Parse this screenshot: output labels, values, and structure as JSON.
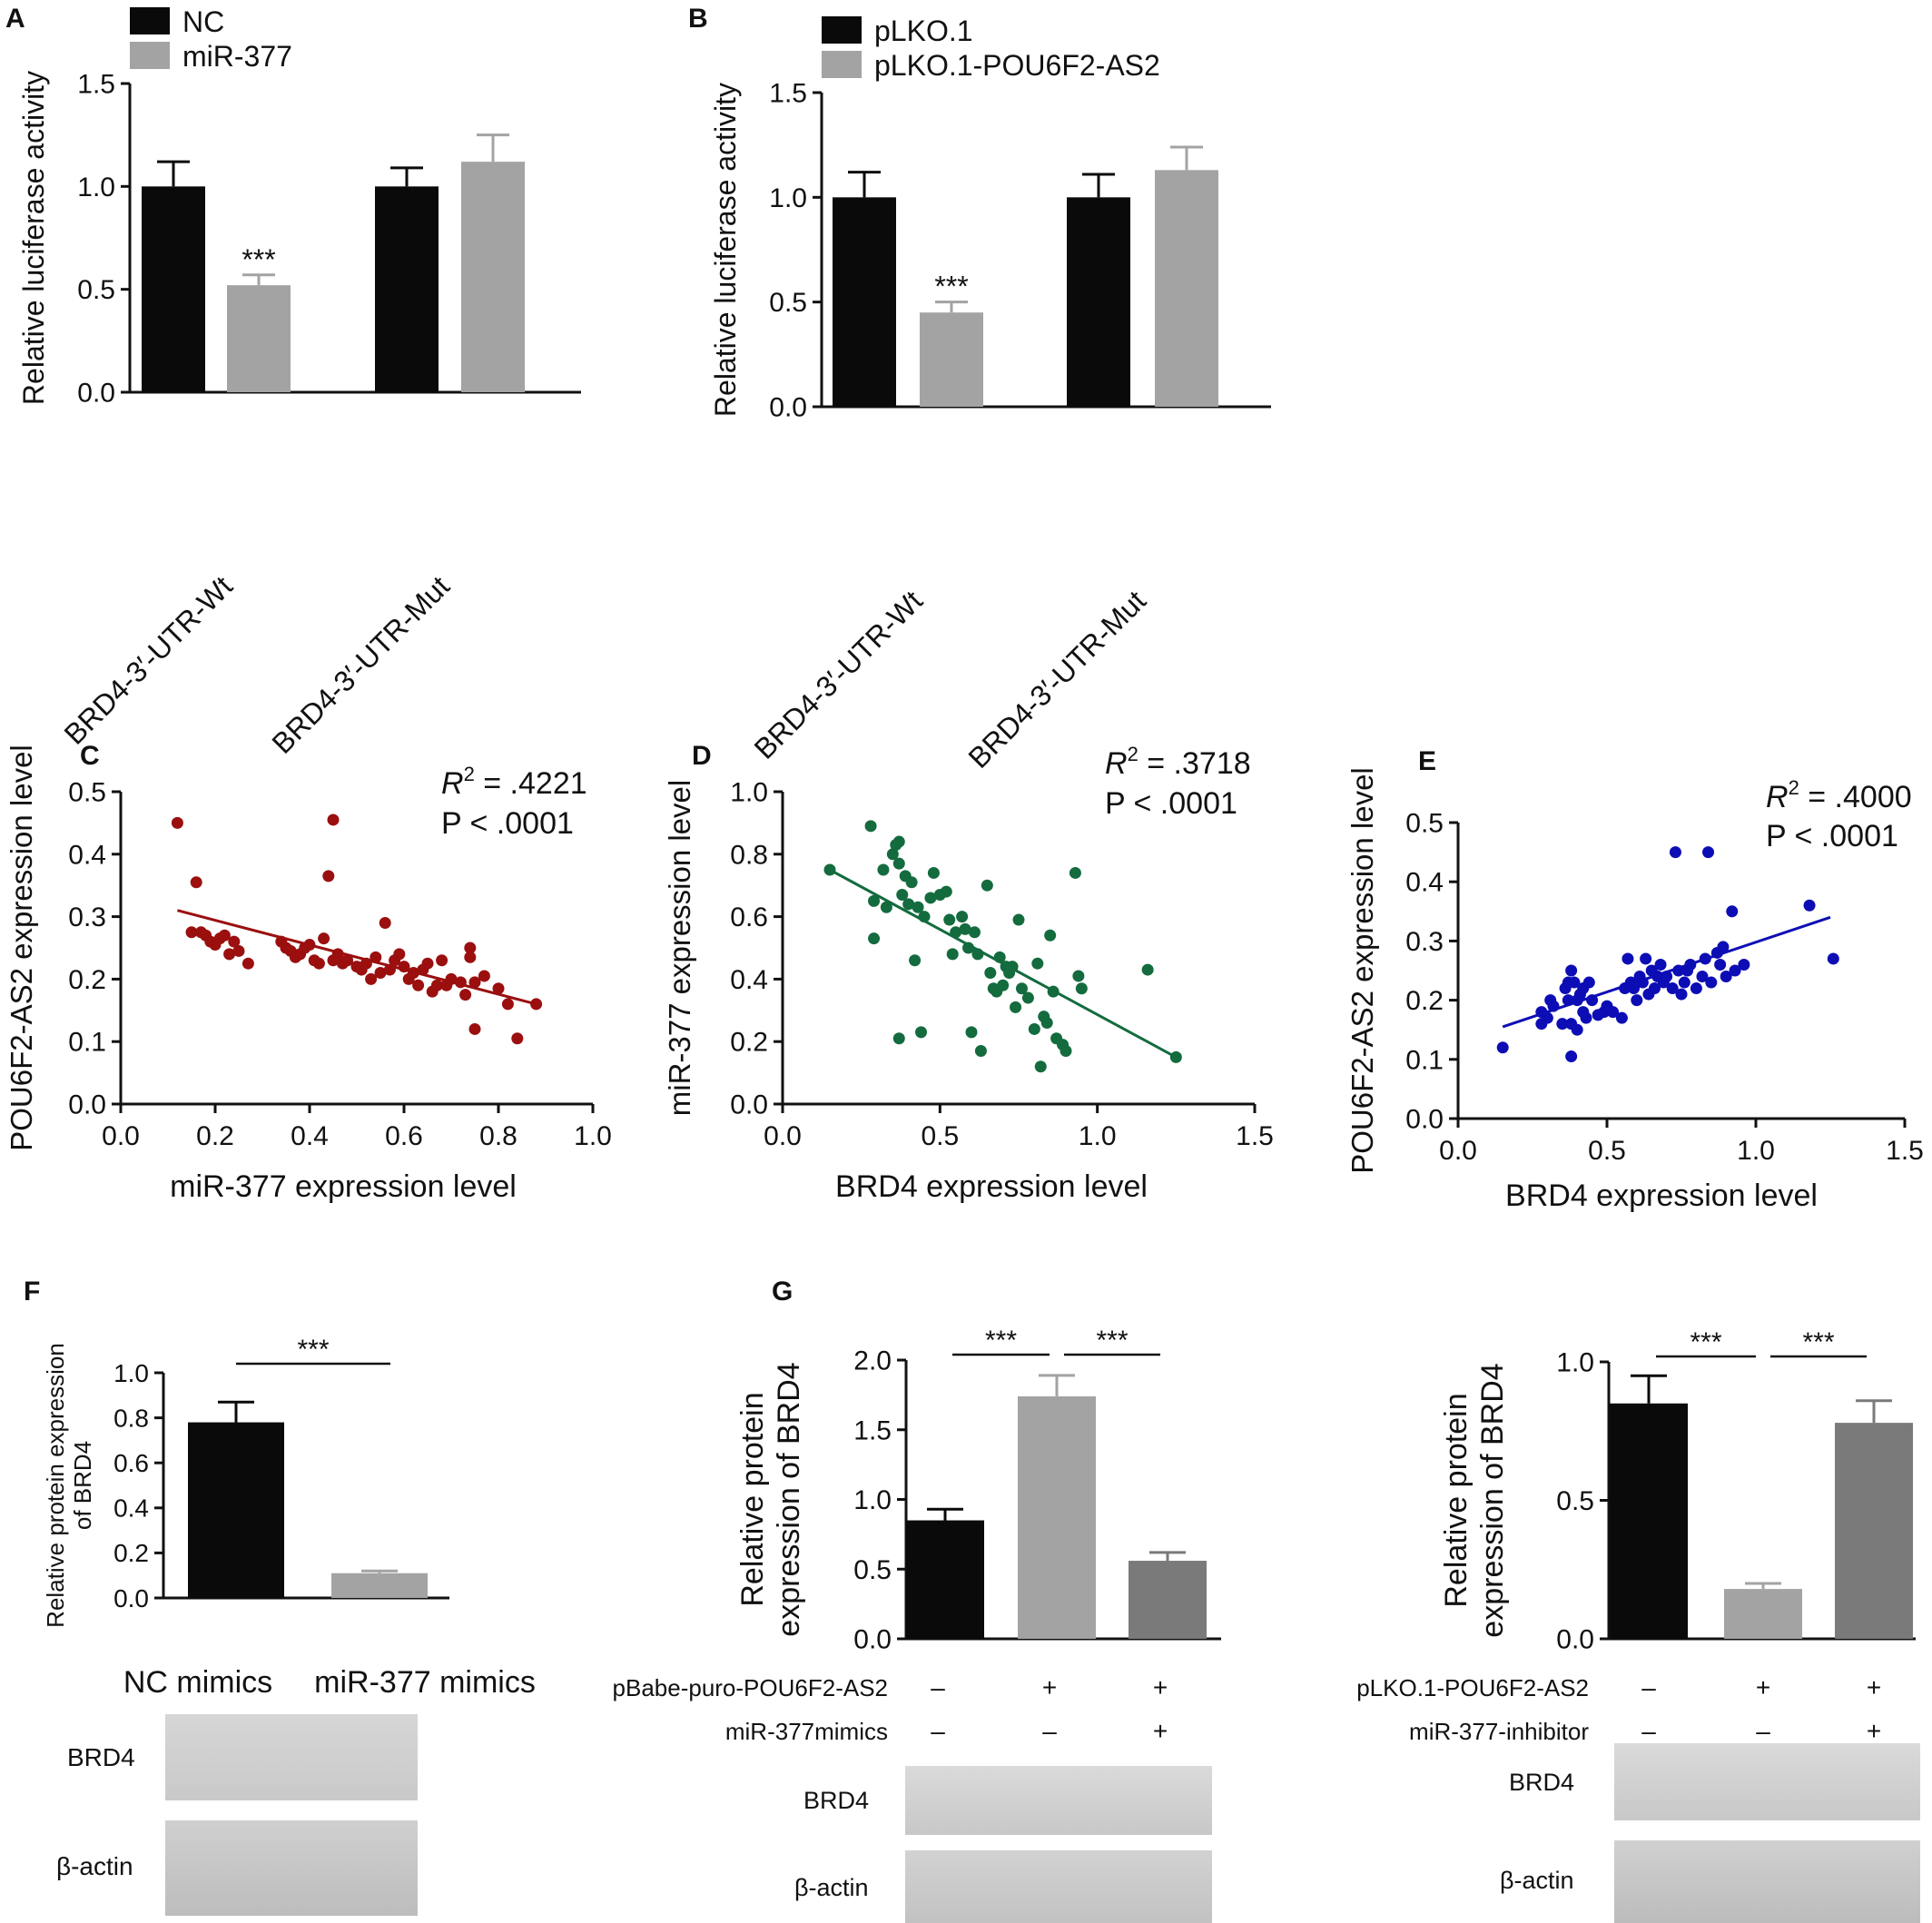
{
  "panels": [
    "A",
    "B",
    "C",
    "D",
    "E",
    "F",
    "G"
  ],
  "colors": {
    "black": "#0a0a0a",
    "gray": "#a3a3a3",
    "midgray": "#7a7a7a",
    "red": "#9b0f0f",
    "green": "#136b3e",
    "blue": "#0d0db5"
  },
  "chart_data": [
    {
      "panel": "A",
      "type": "bar",
      "ylabel": "Relative luciferase activity",
      "ylim": [
        0,
        1.5
      ],
      "yticks": [
        "0.0",
        "0.5",
        "1.0",
        "1.5"
      ],
      "categories": [
        "BRD4-3′-UTR-Wt",
        "BRD4-3′-UTR-Mut"
      ],
      "series": [
        {
          "name": "NC",
          "color": "#0a0a0a",
          "values": [
            1.0,
            1.0
          ],
          "errors": [
            0.12,
            0.09
          ]
        },
        {
          "name": "miR-377",
          "color": "#a3a3a3",
          "values": [
            0.52,
            1.12
          ],
          "errors": [
            0.05,
            0.13
          ]
        }
      ],
      "annotations": [
        {
          "text": "***",
          "category": 0,
          "series": 1
        }
      ]
    },
    {
      "panel": "B",
      "type": "bar",
      "ylabel": "Relative luciferase activity",
      "ylim": [
        0,
        1.5
      ],
      "yticks": [
        "0.0",
        "0.5",
        "1.0",
        "1.5"
      ],
      "categories": [
        "BRD4-3′-UTR-Wt",
        "BRD4-3′-UTR-Mut"
      ],
      "series": [
        {
          "name": "pLKO.1",
          "color": "#0a0a0a",
          "values": [
            1.0,
            1.0
          ],
          "errors": [
            0.12,
            0.11
          ]
        },
        {
          "name": "pLKO.1-POU6F2-AS2",
          "color": "#a3a3a3",
          "values": [
            0.45,
            1.13
          ],
          "errors": [
            0.05,
            0.11
          ]
        }
      ],
      "annotations": [
        {
          "text": "***",
          "category": 0,
          "series": 1
        }
      ]
    },
    {
      "panel": "C",
      "type": "scatter",
      "xlabel": "miR-377 expression level",
      "ylabel": "POU6F2-AS2 expression level",
      "xlim": [
        0,
        1.0
      ],
      "ylim": [
        0,
        0.5
      ],
      "xticks": [
        "0.0",
        "0.2",
        "0.4",
        "0.6",
        "0.8",
        "1.0"
      ],
      "yticks": [
        "0.0",
        "0.1",
        "0.2",
        "0.3",
        "0.4",
        "0.5"
      ],
      "color": "#9b0f0f",
      "r2_label": "R",
      "r2_sup": "2",
      "r2_value": " = .4221",
      "p_text": "P < .0001",
      "fit": {
        "x": [
          0.12,
          0.88
        ],
        "y": [
          0.31,
          0.16
        ]
      },
      "points": [
        [
          0.12,
          0.45
        ],
        [
          0.16,
          0.355
        ],
        [
          0.15,
          0.275
        ],
        [
          0.17,
          0.275
        ],
        [
          0.18,
          0.27
        ],
        [
          0.19,
          0.26
        ],
        [
          0.2,
          0.255
        ],
        [
          0.21,
          0.265
        ],
        [
          0.22,
          0.27
        ],
        [
          0.23,
          0.24
        ],
        [
          0.24,
          0.26
        ],
        [
          0.25,
          0.245
        ],
        [
          0.27,
          0.225
        ],
        [
          0.34,
          0.26
        ],
        [
          0.35,
          0.25
        ],
        [
          0.36,
          0.245
        ],
        [
          0.37,
          0.235
        ],
        [
          0.38,
          0.24
        ],
        [
          0.39,
          0.25
        ],
        [
          0.4,
          0.255
        ],
        [
          0.41,
          0.23
        ],
        [
          0.42,
          0.225
        ],
        [
          0.43,
          0.265
        ],
        [
          0.44,
          0.365
        ],
        [
          0.45,
          0.455
        ],
        [
          0.45,
          0.23
        ],
        [
          0.46,
          0.24
        ],
        [
          0.47,
          0.225
        ],
        [
          0.48,
          0.23
        ],
        [
          0.5,
          0.22
        ],
        [
          0.51,
          0.215
        ],
        [
          0.52,
          0.225
        ],
        [
          0.53,
          0.2
        ],
        [
          0.54,
          0.235
        ],
        [
          0.55,
          0.21
        ],
        [
          0.56,
          0.29
        ],
        [
          0.57,
          0.215
        ],
        [
          0.58,
          0.23
        ],
        [
          0.59,
          0.24
        ],
        [
          0.6,
          0.22
        ],
        [
          0.61,
          0.2
        ],
        [
          0.62,
          0.21
        ],
        [
          0.63,
          0.19
        ],
        [
          0.64,
          0.215
        ],
        [
          0.65,
          0.225
        ],
        [
          0.66,
          0.18
        ],
        [
          0.67,
          0.19
        ],
        [
          0.68,
          0.23
        ],
        [
          0.69,
          0.19
        ],
        [
          0.7,
          0.2
        ],
        [
          0.72,
          0.195
        ],
        [
          0.73,
          0.175
        ],
        [
          0.74,
          0.25
        ],
        [
          0.74,
          0.235
        ],
        [
          0.75,
          0.195
        ],
        [
          0.75,
          0.12
        ],
        [
          0.77,
          0.205
        ],
        [
          0.8,
          0.185
        ],
        [
          0.82,
          0.16
        ],
        [
          0.84,
          0.105
        ],
        [
          0.88,
          0.16
        ]
      ]
    },
    {
      "panel": "D",
      "type": "scatter",
      "xlabel": "BRD4 expression level",
      "ylabel": "miR-377 expression level",
      "xlim": [
        0,
        1.5
      ],
      "ylim": [
        0,
        1.0
      ],
      "xticks": [
        "0.0",
        "0.5",
        "1.0",
        "1.5"
      ],
      "yticks": [
        "0.0",
        "0.2",
        "0.4",
        "0.6",
        "0.8",
        "1.0"
      ],
      "color": "#136b3e",
      "r2_label": "R",
      "r2_sup": "2",
      "r2_value": " = .3718",
      "p_text": "P < .0001",
      "fit": {
        "x": [
          0.15,
          1.25
        ],
        "y": [
          0.75,
          0.15
        ]
      },
      "points": [
        [
          0.15,
          0.75
        ],
        [
          0.28,
          0.89
        ],
        [
          0.29,
          0.65
        ],
        [
          0.29,
          0.53
        ],
        [
          0.32,
          0.75
        ],
        [
          0.33,
          0.63
        ],
        [
          0.35,
          0.8
        ],
        [
          0.36,
          0.83
        ],
        [
          0.37,
          0.84
        ],
        [
          0.37,
          0.77
        ],
        [
          0.37,
          0.21
        ],
        [
          0.38,
          0.67
        ],
        [
          0.39,
          0.73
        ],
        [
          0.4,
          0.64
        ],
        [
          0.41,
          0.71
        ],
        [
          0.42,
          0.46
        ],
        [
          0.43,
          0.63
        ],
        [
          0.44,
          0.23
        ],
        [
          0.45,
          0.6
        ],
        [
          0.47,
          0.66
        ],
        [
          0.48,
          0.74
        ],
        [
          0.5,
          0.67
        ],
        [
          0.52,
          0.68
        ],
        [
          0.53,
          0.59
        ],
        [
          0.54,
          0.48
        ],
        [
          0.55,
          0.55
        ],
        [
          0.57,
          0.6
        ],
        [
          0.58,
          0.56
        ],
        [
          0.59,
          0.5
        ],
        [
          0.6,
          0.23
        ],
        [
          0.61,
          0.55
        ],
        [
          0.62,
          0.48
        ],
        [
          0.63,
          0.17
        ],
        [
          0.65,
          0.7
        ],
        [
          0.66,
          0.42
        ],
        [
          0.67,
          0.37
        ],
        [
          0.68,
          0.36
        ],
        [
          0.69,
          0.47
        ],
        [
          0.7,
          0.38
        ],
        [
          0.71,
          0.44
        ],
        [
          0.72,
          0.42
        ],
        [
          0.73,
          0.44
        ],
        [
          0.74,
          0.31
        ],
        [
          0.75,
          0.59
        ],
        [
          0.76,
          0.37
        ],
        [
          0.78,
          0.34
        ],
        [
          0.8,
          0.24
        ],
        [
          0.81,
          0.45
        ],
        [
          0.82,
          0.12
        ],
        [
          0.83,
          0.28
        ],
        [
          0.84,
          0.26
        ],
        [
          0.85,
          0.54
        ],
        [
          0.86,
          0.36
        ],
        [
          0.87,
          0.21
        ],
        [
          0.89,
          0.19
        ],
        [
          0.9,
          0.17
        ],
        [
          0.93,
          0.74
        ],
        [
          0.94,
          0.41
        ],
        [
          0.95,
          0.37
        ],
        [
          1.16,
          0.43
        ],
        [
          1.25,
          0.15
        ]
      ]
    },
    {
      "panel": "E",
      "type": "scatter",
      "xlabel": "BRD4 expression level",
      "ylabel": "POU6F2-AS2 expression level",
      "xlim": [
        0,
        1.5
      ],
      "ylim": [
        0,
        0.5
      ],
      "xticks": [
        "0.0",
        "0.5",
        "1.0",
        "1.5"
      ],
      "yticks": [
        "0.0",
        "0.1",
        "0.2",
        "0.3",
        "0.4",
        "0.5"
      ],
      "color": "#0d0db5",
      "r2_label": "R",
      "r2_sup": "2",
      "r2_value": " = .4000",
      "p_text": "P < .0001",
      "fit": {
        "x": [
          0.15,
          1.25
        ],
        "y": [
          0.155,
          0.34
        ]
      },
      "points": [
        [
          0.15,
          0.12
        ],
        [
          0.28,
          0.18
        ],
        [
          0.28,
          0.16
        ],
        [
          0.3,
          0.17
        ],
        [
          0.31,
          0.2
        ],
        [
          0.32,
          0.19
        ],
        [
          0.35,
          0.16
        ],
        [
          0.36,
          0.22
        ],
        [
          0.37,
          0.23
        ],
        [
          0.37,
          0.2
        ],
        [
          0.38,
          0.25
        ],
        [
          0.38,
          0.105
        ],
        [
          0.38,
          0.16
        ],
        [
          0.39,
          0.23
        ],
        [
          0.4,
          0.2
        ],
        [
          0.4,
          0.15
        ],
        [
          0.41,
          0.21
        ],
        [
          0.42,
          0.18
        ],
        [
          0.42,
          0.22
        ],
        [
          0.43,
          0.17
        ],
        [
          0.44,
          0.23
        ],
        [
          0.45,
          0.2
        ],
        [
          0.47,
          0.175
        ],
        [
          0.49,
          0.18
        ],
        [
          0.5,
          0.19
        ],
        [
          0.52,
          0.18
        ],
        [
          0.55,
          0.17
        ],
        [
          0.56,
          0.22
        ],
        [
          0.57,
          0.27
        ],
        [
          0.58,
          0.23
        ],
        [
          0.59,
          0.22
        ],
        [
          0.6,
          0.2
        ],
        [
          0.61,
          0.24
        ],
        [
          0.62,
          0.23
        ],
        [
          0.63,
          0.27
        ],
        [
          0.64,
          0.21
        ],
        [
          0.65,
          0.25
        ],
        [
          0.66,
          0.22
        ],
        [
          0.67,
          0.24
        ],
        [
          0.68,
          0.26
        ],
        [
          0.69,
          0.23
        ],
        [
          0.7,
          0.24
        ],
        [
          0.72,
          0.22
        ],
        [
          0.73,
          0.45
        ],
        [
          0.74,
          0.25
        ],
        [
          0.75,
          0.21
        ],
        [
          0.76,
          0.23
        ],
        [
          0.77,
          0.25
        ],
        [
          0.78,
          0.26
        ],
        [
          0.8,
          0.22
        ],
        [
          0.82,
          0.24
        ],
        [
          0.83,
          0.27
        ],
        [
          0.84,
          0.45
        ],
        [
          0.85,
          0.23
        ],
        [
          0.87,
          0.28
        ],
        [
          0.88,
          0.26
        ],
        [
          0.89,
          0.29
        ],
        [
          0.9,
          0.24
        ],
        [
          0.92,
          0.35
        ],
        [
          0.93,
          0.25
        ],
        [
          0.96,
          0.26
        ],
        [
          1.18,
          0.36
        ],
        [
          1.26,
          0.27
        ]
      ]
    },
    {
      "panel": "F",
      "type": "bar",
      "ylabel": "Relative protein expression of BRD4",
      "ylim": [
        0,
        1.0
      ],
      "yticks": [
        "0.0",
        "0.2",
        "0.4",
        "0.6",
        "0.8",
        "1.0"
      ],
      "categories": [
        "NC mimics",
        "miR-377 mimics"
      ],
      "values": [
        0.78,
        0.11
      ],
      "errors": [
        0.09,
        0.01
      ],
      "colors": [
        "#0a0a0a",
        "#a3a3a3"
      ],
      "brackets": [
        {
          "from": 0,
          "to": 1,
          "text": "***"
        }
      ]
    },
    {
      "panel": "G",
      "type": "bar",
      "ylabel": "Relative protein expression of BRD4",
      "ylim": [
        0,
        2.0
      ],
      "yticks": [
        "0.0",
        "0.5",
        "1.0",
        "1.5",
        "2.0"
      ],
      "values": [
        0.85,
        1.74,
        0.56
      ],
      "errors": [
        0.08,
        0.15,
        0.06
      ],
      "colors": [
        "#0a0a0a",
        "#a3a3a3",
        "#7a7a7a"
      ],
      "brackets": [
        {
          "from": 0,
          "to": 1,
          "text": "***"
        },
        {
          "from": 1,
          "to": 2,
          "text": "***"
        }
      ],
      "conditions": [
        {
          "label": "pBabe-puro-POU6F2-AS2",
          "marks": [
            "–",
            "+",
            "+"
          ]
        },
        {
          "label": "miR-377mimics",
          "marks": [
            "–",
            "–",
            "+"
          ]
        }
      ]
    },
    {
      "panel": "G2",
      "type": "bar",
      "ylabel": "Relative protein expression of BRD4",
      "ylim": [
        0,
        1.0
      ],
      "yticks": [
        "0.0",
        "0.5",
        "1.0"
      ],
      "values": [
        0.85,
        0.18,
        0.78
      ],
      "errors": [
        0.1,
        0.02,
        0.08
      ],
      "colors": [
        "#0a0a0a",
        "#a3a3a3",
        "#7a7a7a"
      ],
      "brackets": [
        {
          "from": 0,
          "to": 1,
          "text": "***"
        },
        {
          "from": 1,
          "to": 2,
          "text": "***"
        }
      ],
      "conditions": [
        {
          "label": "pLKO.1-POU6F2-AS2",
          "marks": [
            "–",
            "+",
            "+"
          ]
        },
        {
          "label": "miR-377-inhibitor",
          "marks": [
            "–",
            "–",
            "+"
          ]
        }
      ]
    }
  ],
  "blots": {
    "F": {
      "rows": [
        "BRD4",
        "β-actin"
      ]
    },
    "G": {
      "rows": [
        "BRD4",
        "β-actin"
      ]
    },
    "G2": {
      "rows": [
        "BRD4",
        "β-actin"
      ]
    }
  }
}
